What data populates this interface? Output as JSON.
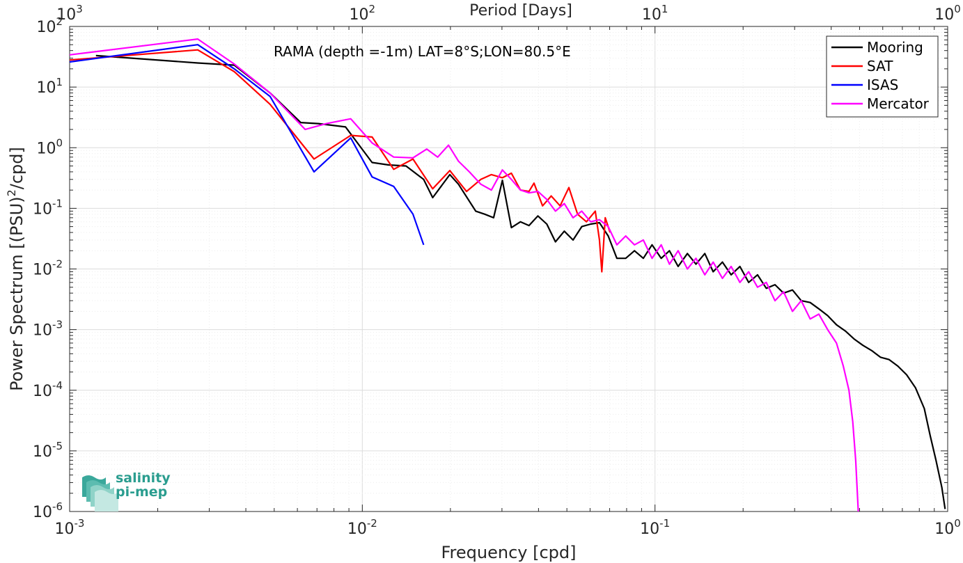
{
  "chart_data": {
    "type": "line",
    "xscale": "log",
    "yscale": "log",
    "xlim": [
      0.001,
      1
    ],
    "ylim": [
      1e-06,
      100
    ],
    "grid": true,
    "legend_position": "top-right",
    "xlabel": "Frequency [cpd]",
    "ylabel_main": "Power Spectrum [(PSU)",
    "ylabel_sup": "2",
    "ylabel_tail": "/cpd]",
    "top_axis_label": "Period [Days]",
    "annotation": "RAMA (depth =-1m) LAT=8°S;LON=80.5°E",
    "x_ticks": [
      {
        "value": 0.001,
        "base": "10",
        "exp": "-3"
      },
      {
        "value": 0.01,
        "base": "10",
        "exp": "-2"
      },
      {
        "value": 0.1,
        "base": "10",
        "exp": "-1"
      },
      {
        "value": 1,
        "base": "10",
        "exp": "0"
      }
    ],
    "top_ticks": [
      {
        "value": 0.001,
        "base": "10",
        "exp": "3"
      },
      {
        "value": 0.01,
        "base": "10",
        "exp": "2"
      },
      {
        "value": 0.1,
        "base": "10",
        "exp": "1"
      },
      {
        "value": 1,
        "base": "10",
        "exp": "0"
      }
    ],
    "y_ticks": [
      {
        "value": 100,
        "base": "10",
        "exp": "2"
      },
      {
        "value": 10,
        "base": "10",
        "exp": "1"
      },
      {
        "value": 1,
        "base": "10",
        "exp": "0"
      },
      {
        "value": 0.1,
        "base": "10",
        "exp": "-1"
      },
      {
        "value": 0.01,
        "base": "10",
        "exp": "-2"
      },
      {
        "value": 0.001,
        "base": "10",
        "exp": "-3"
      },
      {
        "value": 0.0001,
        "base": "10",
        "exp": "-4"
      },
      {
        "value": 1e-05,
        "base": "10",
        "exp": "-5"
      },
      {
        "value": 1e-06,
        "base": "10",
        "exp": "-6"
      }
    ],
    "series": [
      {
        "name": "Mooring",
        "color": "#000000",
        "points": [
          [
            0.00123,
            33
          ],
          [
            0.00274,
            25
          ],
          [
            0.00365,
            23
          ],
          [
            0.00484,
            8
          ],
          [
            0.00616,
            2.6
          ],
          [
            0.00708,
            2.5
          ],
          [
            0.00876,
            2.2
          ],
          [
            0.0108,
            0.57
          ],
          [
            0.0123,
            0.52
          ],
          [
            0.0141,
            0.5
          ],
          [
            0.0162,
            0.3
          ],
          [
            0.0174,
            0.15
          ],
          [
            0.0199,
            0.36
          ],
          [
            0.0213,
            0.25
          ],
          [
            0.0244,
            0.09
          ],
          [
            0.0262,
            0.08
          ],
          [
            0.0281,
            0.07
          ],
          [
            0.0301,
            0.29
          ],
          [
            0.0323,
            0.048
          ],
          [
            0.0347,
            0.06
          ],
          [
            0.0371,
            0.052
          ],
          [
            0.0398,
            0.075
          ],
          [
            0.0427,
            0.055
          ],
          [
            0.0457,
            0.028
          ],
          [
            0.049,
            0.042
          ],
          [
            0.0525,
            0.03
          ],
          [
            0.0562,
            0.05
          ],
          [
            0.0603,
            0.055
          ],
          [
            0.0646,
            0.058
          ],
          [
            0.0692,
            0.035
          ],
          [
            0.0741,
            0.015
          ],
          [
            0.0794,
            0.015
          ],
          [
            0.0851,
            0.02
          ],
          [
            0.0912,
            0.015
          ],
          [
            0.0977,
            0.025
          ],
          [
            0.105,
            0.015
          ],
          [
            0.112,
            0.02
          ],
          [
            0.12,
            0.011
          ],
          [
            0.129,
            0.018
          ],
          [
            0.138,
            0.012
          ],
          [
            0.148,
            0.018
          ],
          [
            0.158,
            0.009
          ],
          [
            0.17,
            0.013
          ],
          [
            0.182,
            0.008
          ],
          [
            0.195,
            0.011
          ],
          [
            0.209,
            0.006
          ],
          [
            0.224,
            0.008
          ],
          [
            0.24,
            0.0048
          ],
          [
            0.257,
            0.0055
          ],
          [
            0.275,
            0.004
          ],
          [
            0.295,
            0.0045
          ],
          [
            0.316,
            0.003
          ],
          [
            0.339,
            0.0028
          ],
          [
            0.363,
            0.0022
          ],
          [
            0.389,
            0.0017
          ],
          [
            0.417,
            0.0012
          ],
          [
            0.447,
            0.00095
          ],
          [
            0.479,
            0.0007
          ],
          [
            0.513,
            0.00055
          ],
          [
            0.55,
            0.00045
          ],
          [
            0.589,
            0.00035
          ],
          [
            0.631,
            0.00032
          ],
          [
            0.676,
            0.00025
          ],
          [
            0.724,
            0.00018
          ],
          [
            0.776,
            0.00011
          ],
          [
            0.832,
            5e-05
          ],
          [
            0.871,
            1.8e-05
          ],
          [
            0.912,
            7e-06
          ],
          [
            0.955,
            2.5e-06
          ],
          [
            0.98,
            1.1e-06
          ]
        ]
      },
      {
        "name": "SAT",
        "color": "#ff0000",
        "points": [
          [
            0.001,
            28
          ],
          [
            0.00274,
            41
          ],
          [
            0.00365,
            18
          ],
          [
            0.00484,
            5.2
          ],
          [
            0.00684,
            0.65
          ],
          [
            0.00913,
            1.6
          ],
          [
            0.0108,
            1.5
          ],
          [
            0.0128,
            0.44
          ],
          [
            0.0149,
            0.65
          ],
          [
            0.0174,
            0.21
          ],
          [
            0.0199,
            0.42
          ],
          [
            0.0227,
            0.19
          ],
          [
            0.0254,
            0.3
          ],
          [
            0.0276,
            0.36
          ],
          [
            0.0301,
            0.32
          ],
          [
            0.0323,
            0.38
          ],
          [
            0.0347,
            0.2
          ],
          [
            0.0371,
            0.19
          ],
          [
            0.0386,
            0.26
          ],
          [
            0.0413,
            0.11
          ],
          [
            0.0442,
            0.16
          ],
          [
            0.0474,
            0.11
          ],
          [
            0.0508,
            0.22
          ],
          [
            0.0544,
            0.08
          ],
          [
            0.0583,
            0.06
          ],
          [
            0.0625,
            0.09
          ],
          [
            0.0646,
            0.03
          ],
          [
            0.0658,
            0.009
          ],
          [
            0.0676,
            0.07
          ],
          [
            0.0702,
            0.04
          ]
        ]
      },
      {
        "name": "ISAS",
        "color": "#0000ff",
        "points": [
          [
            0.001,
            26
          ],
          [
            0.00274,
            50
          ],
          [
            0.00365,
            20
          ],
          [
            0.00484,
            7
          ],
          [
            0.00684,
            0.4
          ],
          [
            0.00913,
            1.45
          ],
          [
            0.0108,
            0.33
          ],
          [
            0.0128,
            0.23
          ],
          [
            0.0149,
            0.08
          ],
          [
            0.0162,
            0.025
          ]
        ]
      },
      {
        "name": "Mercator",
        "color": "#ff00ff",
        "points": [
          [
            0.001,
            34
          ],
          [
            0.00274,
            62
          ],
          [
            0.00365,
            24
          ],
          [
            0.00484,
            8
          ],
          [
            0.00638,
            2
          ],
          [
            0.00754,
            2.5
          ],
          [
            0.00913,
            3
          ],
          [
            0.0108,
            1.2
          ],
          [
            0.0128,
            0.7
          ],
          [
            0.0149,
            0.68
          ],
          [
            0.0166,
            0.95
          ],
          [
            0.0181,
            0.7
          ],
          [
            0.0197,
            1.1
          ],
          [
            0.0213,
            0.6
          ],
          [
            0.0232,
            0.4
          ],
          [
            0.0254,
            0.25
          ],
          [
            0.0276,
            0.2
          ],
          [
            0.0301,
            0.43
          ],
          [
            0.0323,
            0.3
          ],
          [
            0.0347,
            0.2
          ],
          [
            0.0371,
            0.18
          ],
          [
            0.0398,
            0.19
          ],
          [
            0.0427,
            0.14
          ],
          [
            0.0457,
            0.09
          ],
          [
            0.049,
            0.12
          ],
          [
            0.0525,
            0.07
          ],
          [
            0.0562,
            0.09
          ],
          [
            0.0603,
            0.06
          ],
          [
            0.0646,
            0.065
          ],
          [
            0.0692,
            0.05
          ],
          [
            0.0741,
            0.025
          ],
          [
            0.0794,
            0.035
          ],
          [
            0.0851,
            0.025
          ],
          [
            0.0912,
            0.03
          ],
          [
            0.0977,
            0.015
          ],
          [
            0.105,
            0.025
          ],
          [
            0.112,
            0.012
          ],
          [
            0.12,
            0.02
          ],
          [
            0.129,
            0.01
          ],
          [
            0.138,
            0.015
          ],
          [
            0.148,
            0.008
          ],
          [
            0.158,
            0.013
          ],
          [
            0.17,
            0.007
          ],
          [
            0.182,
            0.011
          ],
          [
            0.195,
            0.006
          ],
          [
            0.209,
            0.009
          ],
          [
            0.224,
            0.005
          ],
          [
            0.24,
            0.006
          ],
          [
            0.257,
            0.003
          ],
          [
            0.275,
            0.0042
          ],
          [
            0.295,
            0.002
          ],
          [
            0.316,
            0.003
          ],
          [
            0.339,
            0.0015
          ],
          [
            0.363,
            0.0018
          ],
          [
            0.389,
            0.001
          ],
          [
            0.417,
            0.0006
          ],
          [
            0.44,
            0.00025
          ],
          [
            0.46,
            0.0001
          ],
          [
            0.474,
            3e-05
          ],
          [
            0.485,
            7e-06
          ],
          [
            0.495,
            1e-06
          ]
        ]
      }
    ]
  },
  "logo": {
    "line1": "salinity",
    "line2": "pi-mep",
    "color": "#2a9d8f"
  }
}
